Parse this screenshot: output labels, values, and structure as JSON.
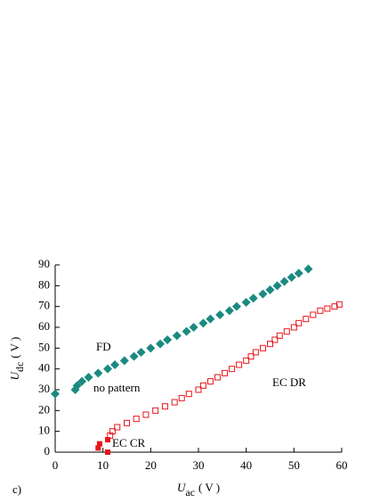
{
  "chart_data": {
    "type": "scatter",
    "panel_label": "c)",
    "x_label": {
      "symbol": "U",
      "subscript": "ac",
      "unit": "( V )"
    },
    "y_label": {
      "symbol": "U",
      "subscript": "dc",
      "unit": "( V )"
    },
    "xlim": [
      0,
      60
    ],
    "xticks": [
      0,
      10,
      20,
      30,
      40,
      50,
      60
    ],
    "ylim": [
      0,
      90
    ],
    "yticks": [
      0,
      10,
      20,
      30,
      40,
      50,
      60,
      70,
      80,
      90
    ],
    "annotations": [
      "no pattern"
    ],
    "series": [
      {
        "name": "FD",
        "color": "#1a8a80",
        "marker": "diamond",
        "x": [
          0,
          4.2,
          4.6,
          5.6,
          7,
          9,
          11,
          12.5,
          14.5,
          16.5,
          18,
          20,
          22,
          23.5,
          25.5,
          27.5,
          29,
          31,
          32.5,
          34.5,
          36.5,
          38,
          40,
          41.5,
          43.5,
          45,
          46.5,
          48,
          49.5,
          51,
          53
        ],
        "values": [
          28,
          30,
          32,
          34,
          36,
          38,
          40,
          42,
          44,
          46,
          48,
          50,
          52,
          54,
          56,
          58,
          60,
          62,
          64,
          66,
          68,
          70,
          72,
          74,
          76,
          78,
          80,
          82,
          84,
          86,
          88
        ]
      },
      {
        "name": "EC DR",
        "color": "#e8141c",
        "marker": "square-open",
        "x": [
          11.5,
          12,
          13,
          15,
          17,
          19,
          21,
          23,
          25,
          26.5,
          28,
          30,
          31,
          32.5,
          34,
          35.5,
          37,
          38.5,
          40,
          41,
          42,
          43.5,
          45,
          46,
          47,
          48.5,
          50,
          51,
          52.5,
          54,
          55.5,
          57,
          58.5,
          59.5
        ],
        "values": [
          8,
          10,
          12,
          14,
          16,
          18,
          20,
          22,
          24,
          26,
          28,
          30,
          32,
          34,
          36,
          38,
          40,
          42,
          44,
          46,
          48,
          50,
          52,
          54,
          56,
          58,
          60,
          62,
          64,
          66,
          68,
          69,
          70,
          71
        ]
      },
      {
        "name": "EC CR",
        "color": "#e8141c",
        "marker": "square",
        "x": [
          9,
          9.3,
          11,
          11
        ],
        "values": [
          2,
          4,
          6,
          0
        ]
      }
    ]
  }
}
